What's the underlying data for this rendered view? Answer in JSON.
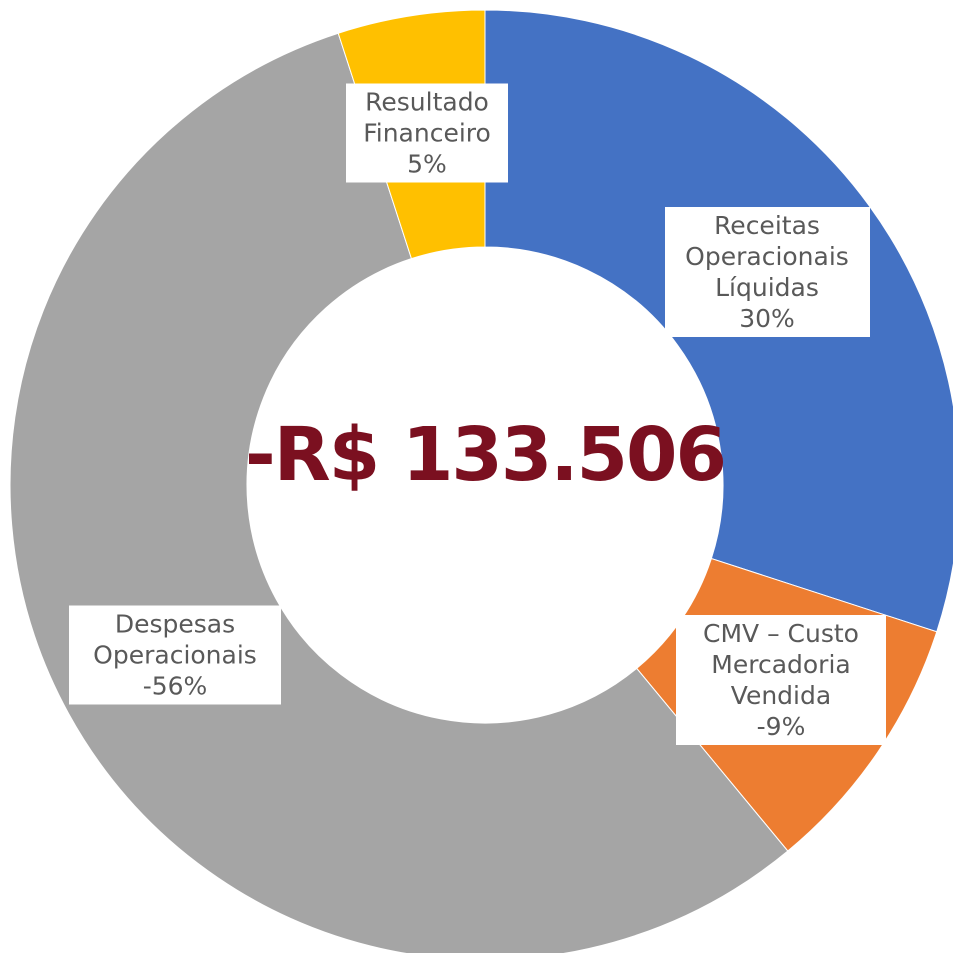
{
  "chart_data": {
    "type": "donut",
    "categories": [
      "Receitas Operacionais Líquidas",
      "CMV – Custo Mercadoria Vendida",
      "Despesas Operacionais",
      "Resultado Financeiro"
    ],
    "values": [
      30,
      -9,
      -56,
      5
    ],
    "value_labels": [
      "30%",
      "-9%",
      "-56%",
      "5%"
    ],
    "colors": [
      "#4472c4",
      "#ed7d31",
      "#a5a5a5",
      "#ffc000"
    ],
    "center_label": "-R$ 133.506"
  }
}
